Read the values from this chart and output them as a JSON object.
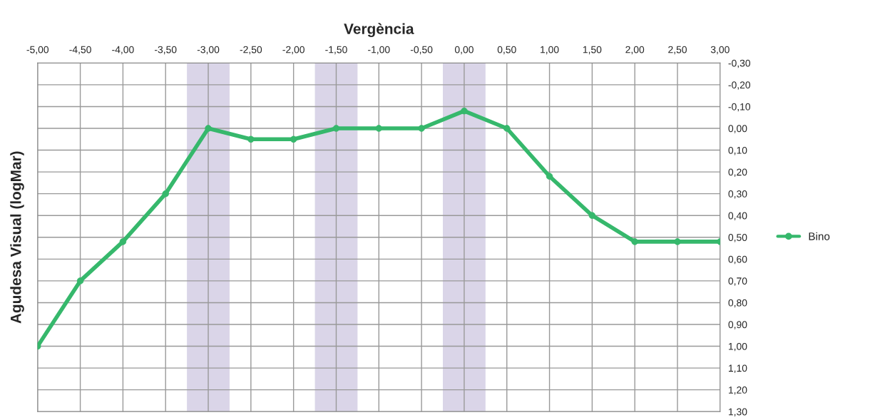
{
  "chart_data": {
    "type": "line",
    "xlabel": "Vergència",
    "ylabel": "Agudesa Visual (logMar)",
    "x": [
      -5,
      -4.5,
      -4,
      -3.5,
      -3,
      -2.5,
      -2,
      -1.5,
      -1,
      -0.5,
      0,
      0.5,
      1,
      1.5,
      2,
      2.5,
      3
    ],
    "series": [
      {
        "name": "Bino",
        "color": "#36b86c",
        "values": [
          1.0,
          0.7,
          0.52,
          0.3,
          0.0,
          0.05,
          0.05,
          0.0,
          0.0,
          0.0,
          -0.08,
          0.0,
          0.22,
          0.4,
          0.52,
          0.52,
          0.52
        ]
      }
    ],
    "xlim": [
      -5,
      3
    ],
    "xticks": [
      {
        "value": -5,
        "label": "-5,00"
      },
      {
        "value": -4.5,
        "label": "-4,50"
      },
      {
        "value": -4,
        "label": "-4,00"
      },
      {
        "value": -3.5,
        "label": "-3,50"
      },
      {
        "value": -3,
        "label": "-3,00"
      },
      {
        "value": -2.5,
        "label": "-2,50"
      },
      {
        "value": -2,
        "label": "-2,00"
      },
      {
        "value": -1.5,
        "label": "-1,50"
      },
      {
        "value": -1,
        "label": "-1,00"
      },
      {
        "value": -0.5,
        "label": "-0,50"
      },
      {
        "value": 0,
        "label": "0,00"
      },
      {
        "value": 0.5,
        "label": "0,50"
      },
      {
        "value": 1,
        "label": "1,00"
      },
      {
        "value": 1.5,
        "label": "1,50"
      },
      {
        "value": 2,
        "label": "2,00"
      },
      {
        "value": 2.5,
        "label": "2,50"
      },
      {
        "value": 3,
        "label": "3,00"
      }
    ],
    "ylim": [
      1.3,
      -0.3
    ],
    "yticks": [
      {
        "value": -0.3,
        "label": "-0,30"
      },
      {
        "value": -0.2,
        "label": "-0,20"
      },
      {
        "value": -0.1,
        "label": "-0,10"
      },
      {
        "value": 0,
        "label": "0,00"
      },
      {
        "value": 0.1,
        "label": "0,10"
      },
      {
        "value": 0.2,
        "label": "0,20"
      },
      {
        "value": 0.3,
        "label": "0,30"
      },
      {
        "value": 0.4,
        "label": "0,40"
      },
      {
        "value": 0.5,
        "label": "0,50"
      },
      {
        "value": 0.6,
        "label": "0,60"
      },
      {
        "value": 0.7,
        "label": "0,70"
      },
      {
        "value": 0.8,
        "label": "0,80"
      },
      {
        "value": 0.9,
        "label": "0,90"
      },
      {
        "value": 1.0,
        "label": "1,00"
      },
      {
        "value": 1.1,
        "label": "1,10"
      },
      {
        "value": 1.2,
        "label": "1,20"
      },
      {
        "value": 1.3,
        "label": "1,30"
      }
    ],
    "bands": [
      {
        "axis": "x",
        "from": -3.25,
        "to": -2.75,
        "color": "#dad5e8"
      },
      {
        "axis": "x",
        "from": -1.75,
        "to": -1.25,
        "color": "#dad5e8"
      },
      {
        "axis": "x",
        "from": -0.25,
        "to": 0.25,
        "color": "#dad5e8"
      }
    ],
    "grid": true,
    "legend": "right",
    "marker": "circle",
    "line_style": "solid"
  }
}
